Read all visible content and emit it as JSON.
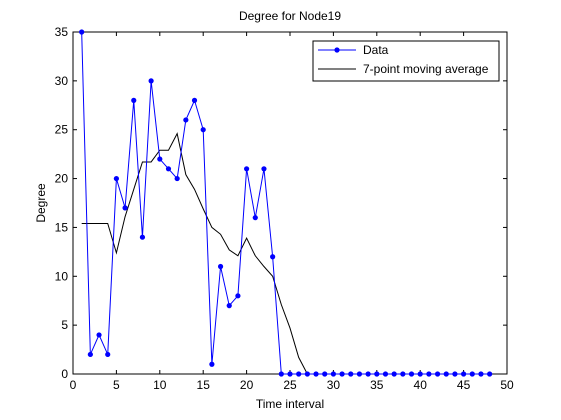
{
  "chart_data": {
    "type": "line",
    "title": "Degree for Node19",
    "xlabel": "Time interval",
    "ylabel": "Degree",
    "xlim": [
      0,
      50
    ],
    "ylim": [
      0,
      35
    ],
    "xticks": [
      0,
      5,
      10,
      15,
      20,
      25,
      30,
      35,
      40,
      45,
      50
    ],
    "yticks": [
      0,
      5,
      10,
      15,
      20,
      25,
      30,
      35
    ],
    "grid": false,
    "legend_position": "top-right",
    "series": [
      {
        "name": "Data",
        "color": "#0000ff",
        "marker": "dot",
        "x": [
          1,
          2,
          3,
          4,
          5,
          6,
          7,
          8,
          9,
          10,
          11,
          12,
          13,
          14,
          15,
          16,
          17,
          18,
          19,
          20,
          21,
          22,
          23,
          24,
          25,
          26,
          27,
          28,
          29,
          30,
          31,
          32,
          33,
          34,
          35,
          36,
          37,
          38,
          39,
          40,
          41,
          42,
          43,
          44,
          45,
          46,
          47,
          48
        ],
        "values": [
          35,
          2,
          4,
          2,
          20,
          17,
          28,
          14,
          30,
          22,
          21,
          20,
          26,
          28,
          25,
          1,
          11,
          7,
          8,
          21,
          16,
          21,
          12,
          0,
          0,
          0,
          0,
          0,
          0,
          0,
          0,
          0,
          0,
          0,
          0,
          0,
          0,
          0,
          0,
          0,
          0,
          0,
          0,
          0,
          0,
          0,
          0,
          0
        ]
      },
      {
        "name": "7-point moving average",
        "color": "#000000",
        "marker": "none",
        "x": [
          1,
          2,
          3,
          4,
          5,
          6,
          7,
          8,
          9,
          10,
          11,
          12,
          13,
          14,
          15,
          16,
          17,
          18,
          19,
          20,
          21,
          22,
          23,
          24,
          25,
          26,
          27,
          28,
          29,
          30,
          31,
          32,
          33,
          34,
          35,
          36,
          37,
          38,
          39,
          40,
          41,
          42,
          43,
          44,
          45,
          46,
          47,
          48
        ],
        "values": [
          15.4,
          15.4,
          15.4,
          15.4,
          12.4,
          16.1,
          18.9,
          21.7,
          21.7,
          22.9,
          22.9,
          24.6,
          20.4,
          18.9,
          16.9,
          15.0,
          14.3,
          12.7,
          12.1,
          13.9,
          12.1,
          11.0,
          10.0,
          7.1,
          4.7,
          1.7,
          0,
          0,
          0,
          0,
          0,
          0,
          0,
          0,
          0,
          0,
          0,
          0,
          0,
          0,
          0,
          0,
          0,
          0,
          0,
          0,
          0,
          0
        ]
      }
    ]
  }
}
